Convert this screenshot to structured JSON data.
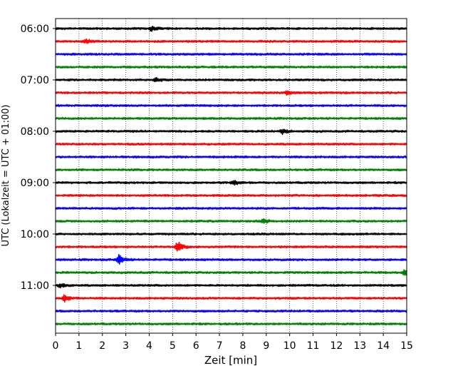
{
  "chart_data": {
    "type": "line",
    "title": "",
    "xlabel": "Zeit  [min]",
    "ylabel": "UTC (Lokalzeit = UTC + 01:00)",
    "xlim": [
      0,
      15
    ],
    "x_ticks": [
      0,
      1,
      2,
      3,
      4,
      5,
      6,
      7,
      8,
      9,
      10,
      11,
      12,
      13,
      14,
      15
    ],
    "y_tick_labels": [
      "06:00",
      "07:00",
      "08:00",
      "09:00",
      "10:00",
      "11:00"
    ],
    "traces_per_hour": 4,
    "trace_colors": [
      "#000000",
      "#ff0000",
      "#0000ff",
      "#008000"
    ],
    "grid": "vertical dotted",
    "traces": [
      {
        "start": "06:00",
        "events": [
          {
            "x": 4.1,
            "amp": 1.6
          }
        ]
      },
      {
        "start": "06:15",
        "events": [
          {
            "x": 1.3,
            "amp": 1.4
          }
        ]
      },
      {
        "start": "06:30",
        "events": []
      },
      {
        "start": "06:45",
        "events": []
      },
      {
        "start": "07:00",
        "events": [
          {
            "x": 4.3,
            "amp": 1.5
          }
        ]
      },
      {
        "start": "07:15",
        "events": [
          {
            "x": 9.9,
            "amp": 1.6
          }
        ]
      },
      {
        "start": "07:30",
        "events": []
      },
      {
        "start": "07:45",
        "events": []
      },
      {
        "start": "08:00",
        "events": [
          {
            "x": 9.7,
            "amp": 1.5
          }
        ]
      },
      {
        "start": "08:15",
        "events": []
      },
      {
        "start": "08:30",
        "events": []
      },
      {
        "start": "08:45",
        "events": []
      },
      {
        "start": "09:00",
        "events": [
          {
            "x": 7.6,
            "amp": 1.3
          }
        ]
      },
      {
        "start": "09:15",
        "events": []
      },
      {
        "start": "09:30",
        "events": []
      },
      {
        "start": "09:45",
        "events": [
          {
            "x": 8.9,
            "amp": 1.4
          }
        ]
      },
      {
        "start": "10:00",
        "events": []
      },
      {
        "start": "10:15",
        "events": [
          {
            "x": 5.2,
            "amp": 3.5
          }
        ]
      },
      {
        "start": "10:30",
        "events": [
          {
            "x": 2.7,
            "amp": 3.2
          }
        ]
      },
      {
        "start": "10:45",
        "events": [
          {
            "x": 14.9,
            "amp": 1.8
          }
        ]
      },
      {
        "start": "11:00",
        "events": [
          {
            "x": 0.2,
            "amp": 1.5
          }
        ]
      },
      {
        "start": "11:15",
        "events": [
          {
            "x": 0.4,
            "amp": 2.2
          }
        ]
      },
      {
        "start": "11:30",
        "events": []
      },
      {
        "start": "11:45",
        "events": []
      }
    ]
  }
}
